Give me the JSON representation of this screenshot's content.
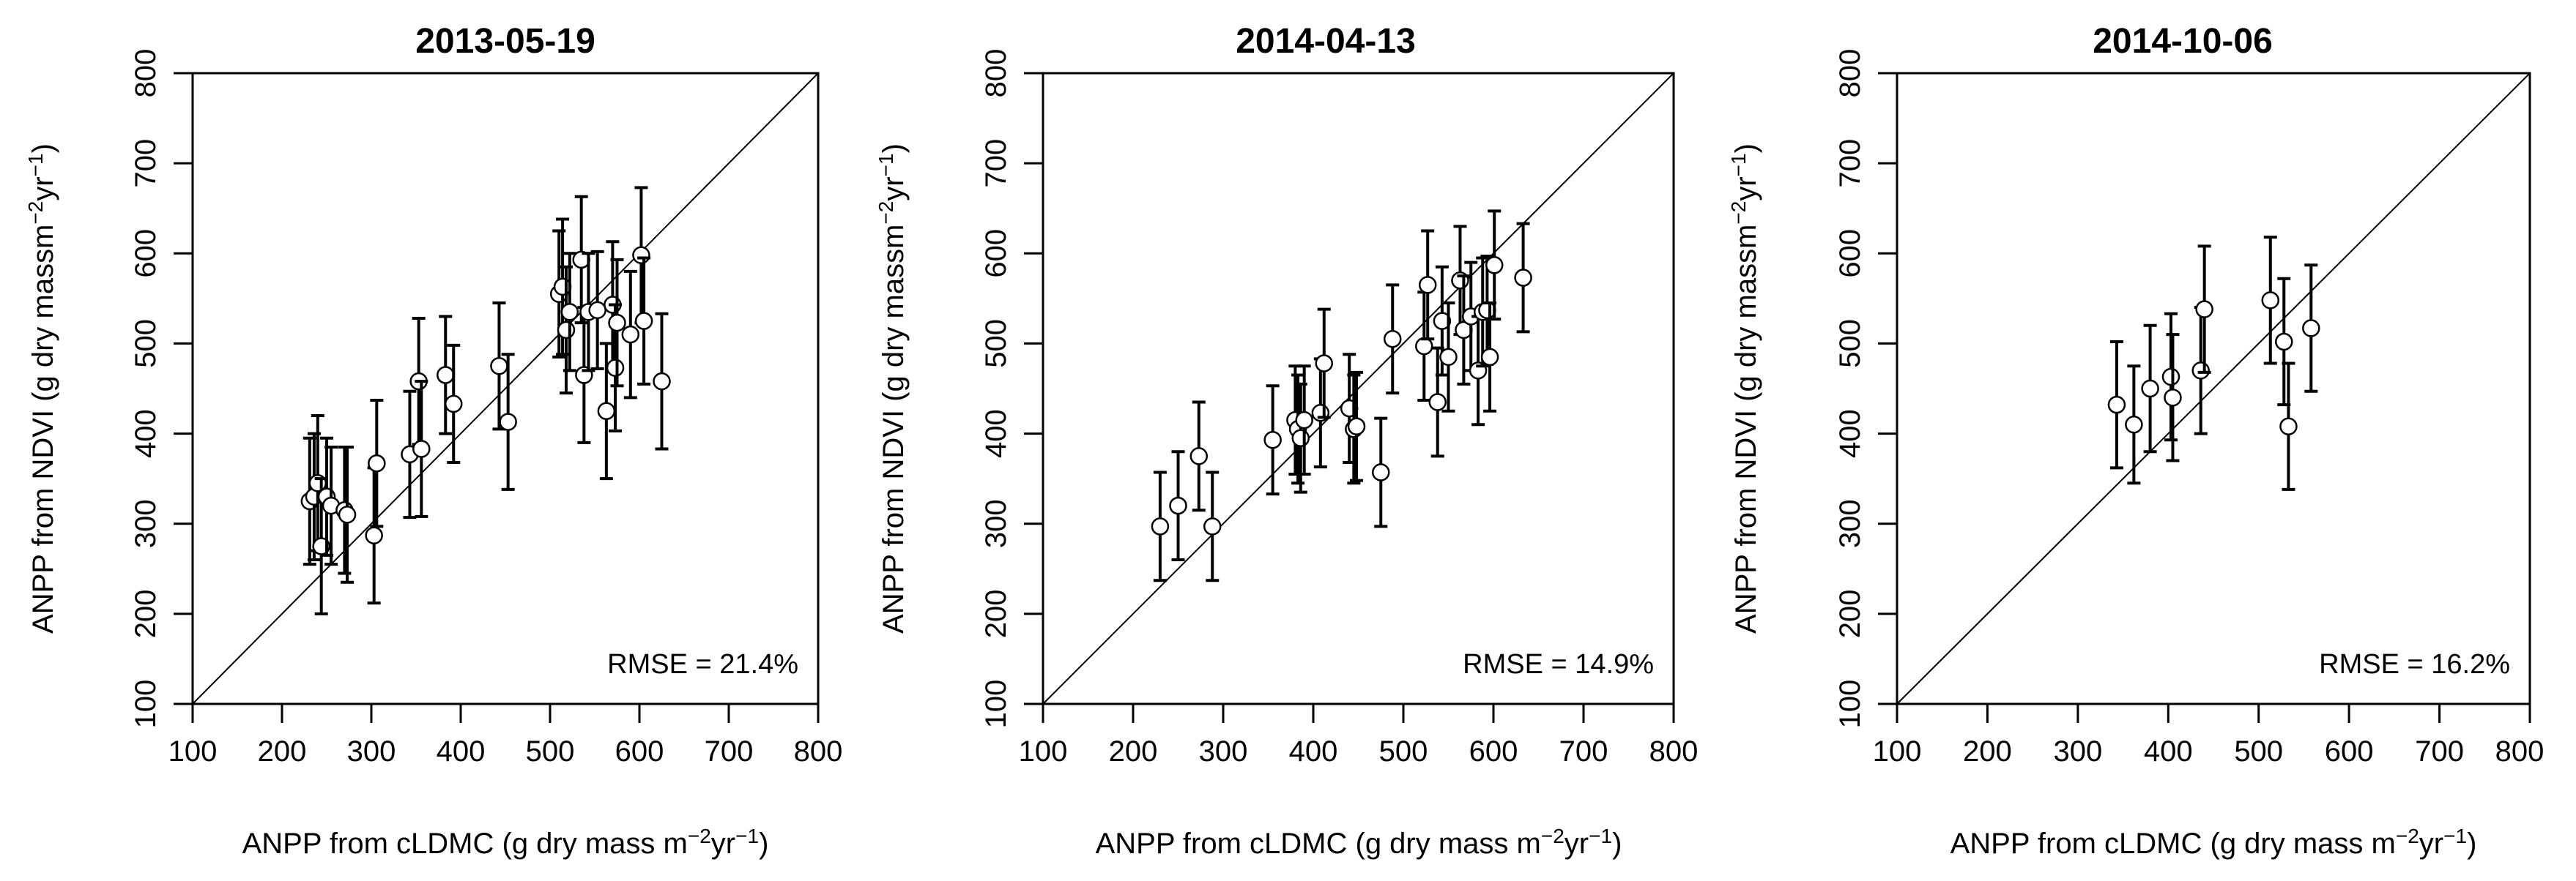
{
  "chart_data": [
    {
      "type": "scatter",
      "title": "2013-05-19",
      "xlabel": {
        "main": "ANPP from cLDMC (g dry mass m",
        "sup1": "−2",
        "mid": "yr",
        "sup2": "−1",
        "end": ")"
      },
      "ylabel": {
        "main": "ANPP from NDVI (g dry massm",
        "sup1": "−2",
        "mid": "yr",
        "sup2": "−1",
        "end": ")"
      },
      "xlim": [
        100,
        800
      ],
      "ylim": [
        100,
        800
      ],
      "xticks": [
        "100",
        "200",
        "300",
        "400",
        "500",
        "600",
        "700",
        "800"
      ],
      "yticks": [
        "100",
        "200",
        "300",
        "400",
        "500",
        "600",
        "700",
        "800"
      ],
      "annotation": "RMSE = 21.4%",
      "identity_line": true,
      "points": [
        {
          "x": 231,
          "y": 325,
          "err": 70
        },
        {
          "x": 236,
          "y": 330,
          "err": 70
        },
        {
          "x": 240,
          "y": 345,
          "err": 75
        },
        {
          "x": 244,
          "y": 275,
          "err": 75
        },
        {
          "x": 250,
          "y": 330,
          "err": 65
        },
        {
          "x": 255,
          "y": 320,
          "err": 65
        },
        {
          "x": 270,
          "y": 315,
          "err": 70
        },
        {
          "x": 273,
          "y": 310,
          "err": 75
        },
        {
          "x": 303,
          "y": 287,
          "err": 75
        },
        {
          "x": 306,
          "y": 367,
          "err": 70
        },
        {
          "x": 343,
          "y": 377,
          "err": 70
        },
        {
          "x": 353,
          "y": 458,
          "err": 70
        },
        {
          "x": 356,
          "y": 383,
          "err": 75
        },
        {
          "x": 383,
          "y": 465,
          "err": 65
        },
        {
          "x": 392,
          "y": 433,
          "err": 65
        },
        {
          "x": 443,
          "y": 475,
          "err": 70
        },
        {
          "x": 453,
          "y": 413,
          "err": 75
        },
        {
          "x": 510,
          "y": 555,
          "err": 70
        },
        {
          "x": 514,
          "y": 563,
          "err": 75
        },
        {
          "x": 518,
          "y": 515,
          "err": 70
        },
        {
          "x": 522,
          "y": 535,
          "err": 65
        },
        {
          "x": 535,
          "y": 593,
          "err": 70
        },
        {
          "x": 538,
          "y": 465,
          "err": 75
        },
        {
          "x": 543,
          "y": 535,
          "err": 65
        },
        {
          "x": 553,
          "y": 537,
          "err": 65
        },
        {
          "x": 563,
          "y": 425,
          "err": 75
        },
        {
          "x": 570,
          "y": 543,
          "err": 70
        },
        {
          "x": 573,
          "y": 473,
          "err": 70
        },
        {
          "x": 575,
          "y": 523,
          "err": 70
        },
        {
          "x": 590,
          "y": 510,
          "err": 70
        },
        {
          "x": 602,
          "y": 598,
          "err": 75
        },
        {
          "x": 605,
          "y": 525,
          "err": 70
        },
        {
          "x": 625,
          "y": 458,
          "err": 75
        }
      ]
    },
    {
      "type": "scatter",
      "title": "2014-04-13",
      "xlabel": {
        "main": "ANPP from cLDMC (g dry mass m",
        "sup1": "−2",
        "mid": "yr",
        "sup2": "−1",
        "end": ")"
      },
      "ylabel": {
        "main": "ANPP from NDVI (g dry massm",
        "sup1": "−2",
        "mid": "yr",
        "sup2": "−1",
        "end": ")"
      },
      "xlim": [
        100,
        800
      ],
      "ylim": [
        100,
        800
      ],
      "xticks": [
        "100",
        "200",
        "300",
        "400",
        "500",
        "600",
        "700",
        "800"
      ],
      "yticks": [
        "100",
        "200",
        "300",
        "400",
        "500",
        "600",
        "700",
        "800"
      ],
      "annotation": "RMSE = 14.9%",
      "identity_line": true,
      "points": [
        {
          "x": 230,
          "y": 297,
          "err": 60
        },
        {
          "x": 250,
          "y": 320,
          "err": 60
        },
        {
          "x": 273,
          "y": 375,
          "err": 60
        },
        {
          "x": 288,
          "y": 297,
          "err": 60
        },
        {
          "x": 355,
          "y": 393,
          "err": 60
        },
        {
          "x": 380,
          "y": 415,
          "err": 60
        },
        {
          "x": 383,
          "y": 405,
          "err": 60
        },
        {
          "x": 386,
          "y": 395,
          "err": 60
        },
        {
          "x": 390,
          "y": 415,
          "err": 60
        },
        {
          "x": 408,
          "y": 423,
          "err": 60
        },
        {
          "x": 412,
          "y": 478,
          "err": 60
        },
        {
          "x": 440,
          "y": 428,
          "err": 60
        },
        {
          "x": 445,
          "y": 405,
          "err": 60
        },
        {
          "x": 448,
          "y": 408,
          "err": 60
        },
        {
          "x": 475,
          "y": 357,
          "err": 60
        },
        {
          "x": 488,
          "y": 505,
          "err": 60
        },
        {
          "x": 523,
          "y": 497,
          "err": 60
        },
        {
          "x": 527,
          "y": 565,
          "err": 60
        },
        {
          "x": 538,
          "y": 435,
          "err": 60
        },
        {
          "x": 543,
          "y": 525,
          "err": 60
        },
        {
          "x": 550,
          "y": 485,
          "err": 60
        },
        {
          "x": 563,
          "y": 570,
          "err": 60
        },
        {
          "x": 567,
          "y": 515,
          "err": 60
        },
        {
          "x": 575,
          "y": 530,
          "err": 60
        },
        {
          "x": 583,
          "y": 470,
          "err": 60
        },
        {
          "x": 588,
          "y": 535,
          "err": 60
        },
        {
          "x": 593,
          "y": 537,
          "err": 60
        },
        {
          "x": 596,
          "y": 485,
          "err": 60
        },
        {
          "x": 601,
          "y": 587,
          "err": 60
        },
        {
          "x": 633,
          "y": 573,
          "err": 60
        }
      ]
    },
    {
      "type": "scatter",
      "title": "2014-10-06",
      "xlabel": {
        "main": "ANPP from cLDMC (g dry mass m",
        "sup1": "−2",
        "mid": "yr",
        "sup2": "−1",
        "end": ")"
      },
      "ylabel": {
        "main": "ANPP from NDVI (g dry massm",
        "sup1": "−2",
        "mid": "yr",
        "sup2": "−1",
        "end": ")"
      },
      "xlim": [
        100,
        800
      ],
      "ylim": [
        100,
        800
      ],
      "xticks": [
        "100",
        "200",
        "300",
        "400",
        "500",
        "600",
        "700",
        "800"
      ],
      "yticks": [
        "100",
        "200",
        "300",
        "400",
        "500",
        "600",
        "700",
        "800"
      ],
      "annotation": "RMSE = 16.2%",
      "identity_line": true,
      "points": [
        {
          "x": 343,
          "y": 432,
          "err": 70
        },
        {
          "x": 362,
          "y": 410,
          "err": 65
        },
        {
          "x": 380,
          "y": 450,
          "err": 70
        },
        {
          "x": 403,
          "y": 463,
          "err": 70
        },
        {
          "x": 405,
          "y": 440,
          "err": 70
        },
        {
          "x": 436,
          "y": 470,
          "err": 70
        },
        {
          "x": 440,
          "y": 538,
          "err": 70
        },
        {
          "x": 513,
          "y": 548,
          "err": 70
        },
        {
          "x": 528,
          "y": 502,
          "err": 70
        },
        {
          "x": 533,
          "y": 408,
          "err": 70
        },
        {
          "x": 558,
          "y": 517,
          "err": 70
        }
      ]
    }
  ]
}
